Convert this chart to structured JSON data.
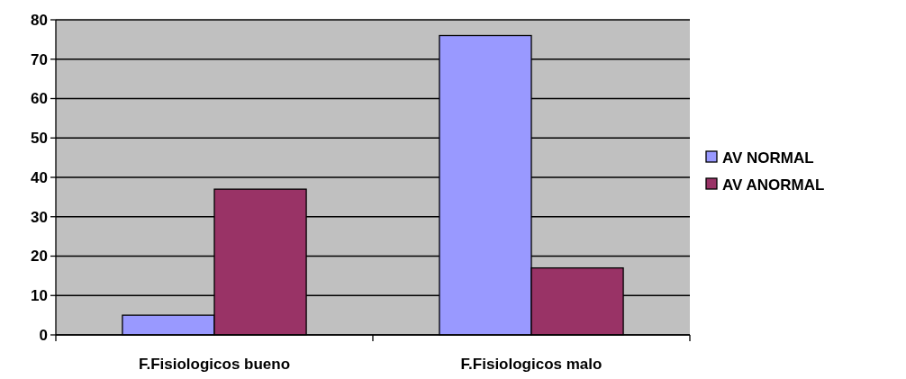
{
  "chart_data": {
    "type": "bar",
    "categories": [
      "F.Fisiologicos bueno",
      "F.Fisiologicos malo"
    ],
    "series": [
      {
        "name": "AV NORMAL",
        "color": "#9999ff",
        "values": [
          5,
          76
        ]
      },
      {
        "name": "AV ANORMAL",
        "color": "#993366",
        "values": [
          37,
          17
        ]
      }
    ],
    "ylim": [
      0,
      80
    ],
    "yticks": [
      0,
      10,
      20,
      30,
      40,
      50,
      60,
      70,
      80
    ],
    "grid": "y",
    "legend": "right"
  }
}
